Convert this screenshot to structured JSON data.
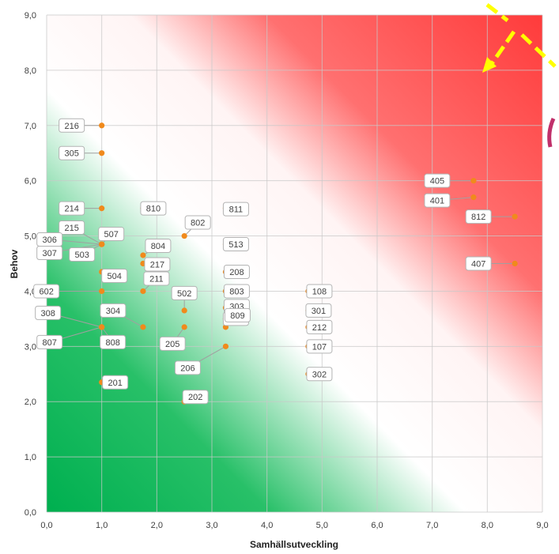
{
  "chart_data": {
    "type": "scatter",
    "title": "",
    "xlabel": "Samhällsutveckling",
    "ylabel": "Behov",
    "xlim": [
      0,
      9
    ],
    "ylim": [
      0,
      9
    ],
    "x_ticks": [
      "0,0",
      "1,0",
      "2,0",
      "3,0",
      "4,0",
      "5,0",
      "6,0",
      "7,0",
      "8,0",
      "9,0"
    ],
    "y_ticks": [
      "0,0",
      "1,0",
      "2,0",
      "3,0",
      "4,0",
      "5,0",
      "6,0",
      "7,0",
      "8,0",
      "9,0"
    ],
    "grid": true,
    "background": "diagonal gradient: green (low) through white to red (high)",
    "colors": {
      "low": "#00b050",
      "mid": "#ffffff",
      "high": "#ff3b3b",
      "point": "#f08a1c",
      "arrow": "#ffff00"
    },
    "points": [
      {
        "label": "216",
        "x": 1.0,
        "y": 7.0
      },
      {
        "label": "305",
        "x": 1.0,
        "y": 6.5
      },
      {
        "label": "214",
        "x": 1.0,
        "y": 5.5
      },
      {
        "label": "215",
        "x": 1.0,
        "y": 4.85
      },
      {
        "label": "306",
        "x": 1.0,
        "y": 4.85
      },
      {
        "label": "503",
        "x": 1.0,
        "y": 4.85
      },
      {
        "label": "507",
        "x": 1.0,
        "y": 4.85
      },
      {
        "label": "307",
        "x": 1.0,
        "y": 4.85
      },
      {
        "label": "504",
        "x": 1.0,
        "y": 4.35
      },
      {
        "label": "602",
        "x": 1.0,
        "y": 4.0
      },
      {
        "label": "308",
        "x": 1.0,
        "y": 3.35
      },
      {
        "label": "807",
        "x": 1.0,
        "y": 3.35
      },
      {
        "label": "808",
        "x": 1.0,
        "y": 3.35
      },
      {
        "label": "201",
        "x": 1.0,
        "y": 2.35
      },
      {
        "label": "810",
        "x": 1.75,
        "y": 5.5
      },
      {
        "label": "804",
        "x": 1.75,
        "y": 4.65
      },
      {
        "label": "217",
        "x": 1.75,
        "y": 4.5
      },
      {
        "label": "211",
        "x": 1.75,
        "y": 4.0
      },
      {
        "label": "304",
        "x": 1.75,
        "y": 3.35
      },
      {
        "label": "802",
        "x": 2.5,
        "y": 5.0
      },
      {
        "label": "502",
        "x": 2.5,
        "y": 3.65
      },
      {
        "label": "205",
        "x": 2.5,
        "y": 3.35
      },
      {
        "label": "202",
        "x": 2.5,
        "y": 2.0
      },
      {
        "label": "811",
        "x": 3.25,
        "y": 5.5
      },
      {
        "label": "513",
        "x": 3.25,
        "y": 4.85
      },
      {
        "label": "208",
        "x": 3.25,
        "y": 4.35
      },
      {
        "label": "803",
        "x": 3.25,
        "y": 4.0
      },
      {
        "label": "303",
        "x": 3.25,
        "y": 3.7
      },
      {
        "label": "103",
        "x": 3.25,
        "y": 3.5
      },
      {
        "label": "809",
        "x": 3.25,
        "y": 3.35
      },
      {
        "label": "206",
        "x": 3.25,
        "y": 3.0
      },
      {
        "label": "108",
        "x": 4.75,
        "y": 4.0
      },
      {
        "label": "301",
        "x": 4.75,
        "y": 3.65
      },
      {
        "label": "212",
        "x": 4.75,
        "y": 3.35
      },
      {
        "label": "107",
        "x": 4.75,
        "y": 3.0
      },
      {
        "label": "302",
        "x": 4.75,
        "y": 2.5
      },
      {
        "label": "405",
        "x": 7.75,
        "y": 6.0
      },
      {
        "label": "401",
        "x": 7.75,
        "y": 5.7
      },
      {
        "label": "812",
        "x": 8.5,
        "y": 5.35
      },
      {
        "label": "407",
        "x": 8.5,
        "y": 4.5
      }
    ]
  }
}
